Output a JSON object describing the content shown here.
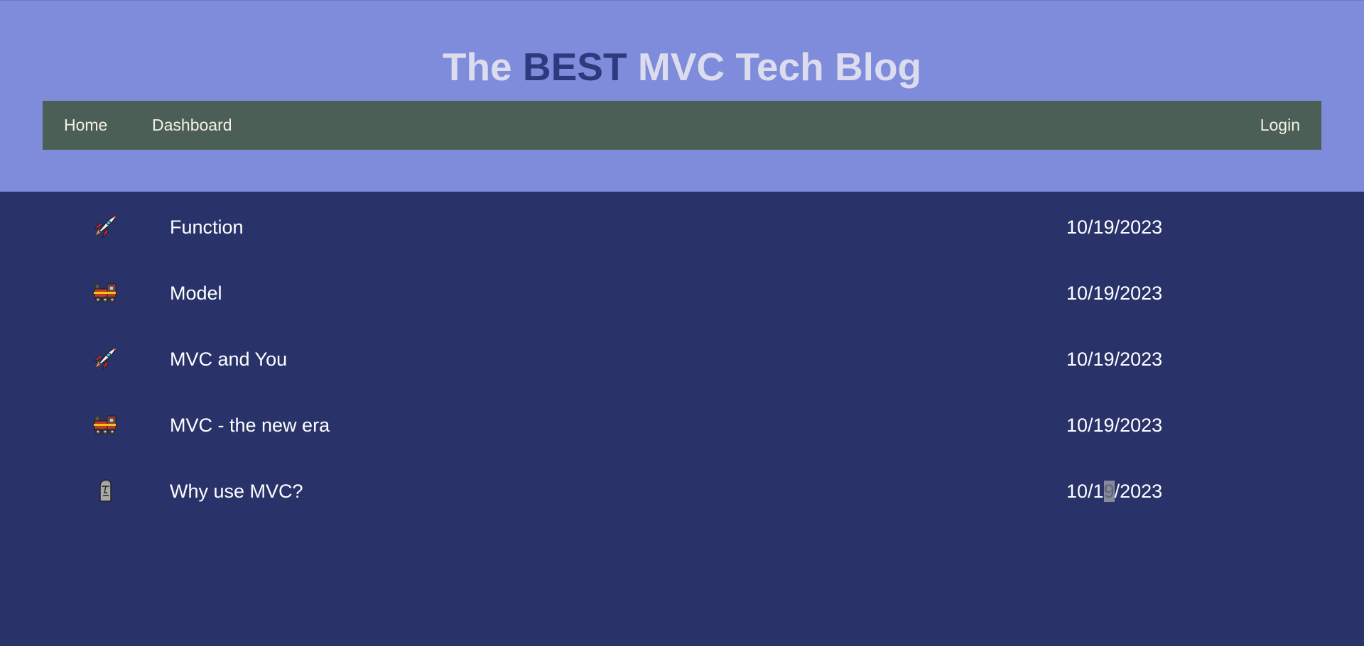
{
  "header": {
    "title_prefix": "The",
    "title_highlight": "BEST",
    "title_suffix": "MVC Tech Blog"
  },
  "nav": {
    "home": "Home",
    "dashboard": "Dashboard",
    "login": "Login"
  },
  "posts": [
    {
      "icon": "rocket-icon",
      "title": "Function",
      "date": "10/19/2023"
    },
    {
      "icon": "locomotive-icon",
      "title": "Model",
      "date": "10/19/2023"
    },
    {
      "icon": "rocket-icon",
      "title": "MVC and You",
      "date": "10/19/2023"
    },
    {
      "icon": "locomotive-icon",
      "title": "MVC - the new era",
      "date": "10/19/2023"
    },
    {
      "icon": "moai-icon",
      "title": "Why use MVC?",
      "date_before": "10/1",
      "date_selected": "9",
      "date_after": "/2023"
    }
  ],
  "colors": {
    "header_bg": "#7e8cdb",
    "nav_bg": "#4c5f56",
    "body_bg": "#29336a",
    "title_text": "#dcdcef",
    "title_highlight": "#2d3a7d"
  }
}
